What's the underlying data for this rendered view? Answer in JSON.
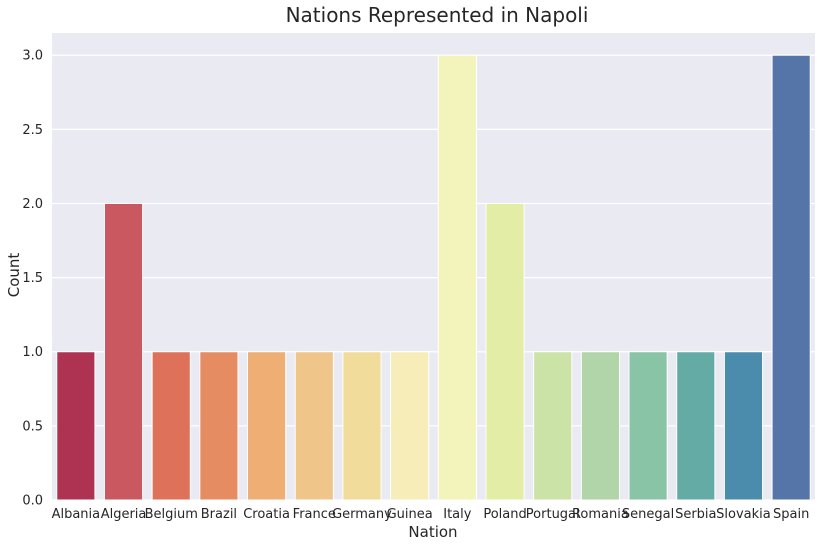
{
  "chart_data": {
    "type": "bar",
    "title": "Nations Represented in Napoli",
    "xlabel": "Nation",
    "ylabel": "Count",
    "categories": [
      "Albania",
      "Algeria",
      "Belgium",
      "Brazil",
      "Croatia",
      "France",
      "Germany",
      "Guinea",
      "Italy",
      "Poland",
      "Portugal",
      "Romania",
      "Senegal",
      "Serbia",
      "Slovakia",
      "Spain"
    ],
    "values": [
      1,
      2,
      1,
      1,
      1,
      1,
      1,
      1,
      3,
      2,
      1,
      1,
      1,
      1,
      1,
      3
    ],
    "ylim": [
      0,
      3.15
    ],
    "yticks": [
      "0.0",
      "0.5",
      "1.0",
      "1.5",
      "2.0",
      "2.5",
      "3.0"
    ],
    "grid": true,
    "colors": [
      "#ae3353",
      "#ca5860",
      "#de7159",
      "#e68c62",
      "#eeae74",
      "#efc589",
      "#f2dc9b",
      "#f6edb9",
      "#f2f4bc",
      "#e3eda5",
      "#cce3a7",
      "#b1d4a9",
      "#89c4a7",
      "#63aba4",
      "#4b8cad",
      "#5575a8"
    ],
    "background": "#eaeaf2"
  }
}
